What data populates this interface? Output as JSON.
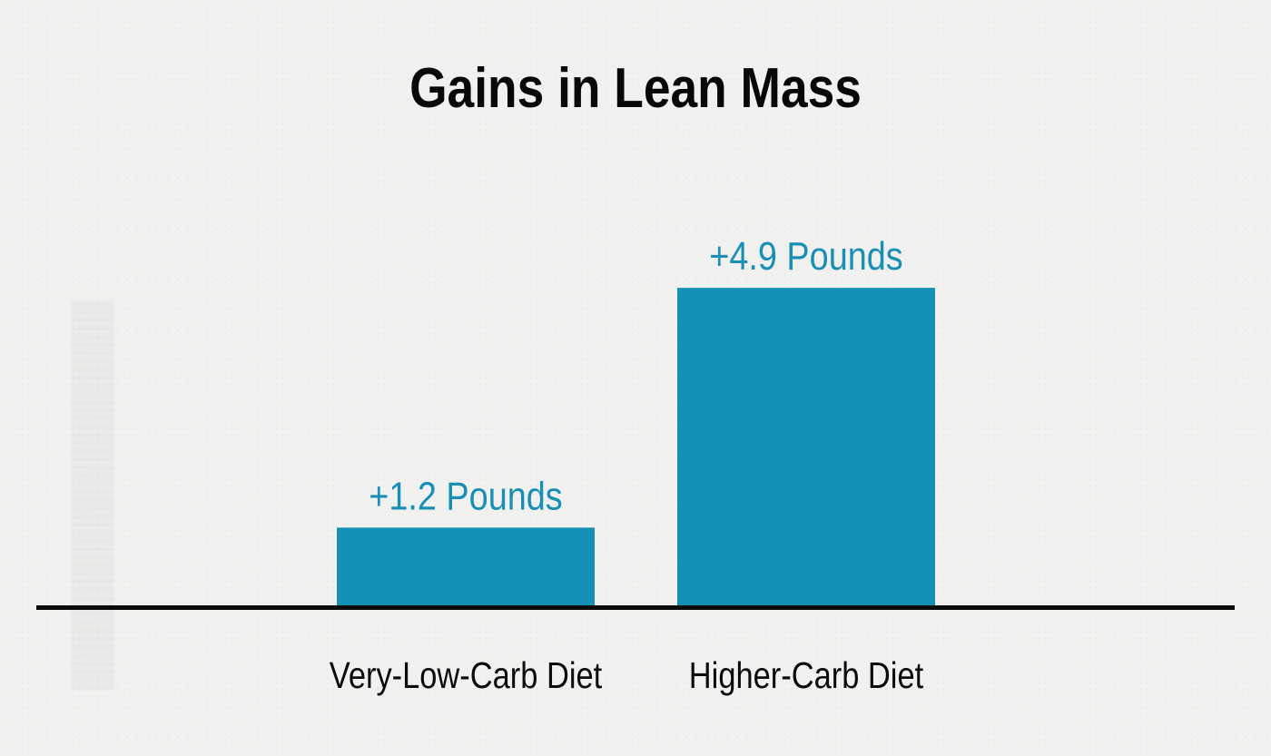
{
  "chart_data": {
    "type": "bar",
    "title": "Gains in Lean Mass",
    "categories": [
      "Very-Low-Carb Diet",
      "Higher-Carb Diet"
    ],
    "values": [
      1.2,
      4.9
    ],
    "data_labels": [
      "+1.2 Pounds",
      "+4.9 Pounds"
    ],
    "xlabel": "",
    "ylabel": "",
    "ylim": [
      0,
      6
    ],
    "grid": false,
    "legend": "none",
    "colors": {
      "bar": "#1590b6",
      "data_label": "#1a8fb5",
      "axis": "#0a0a0a",
      "background": "#f1f1f0"
    }
  }
}
